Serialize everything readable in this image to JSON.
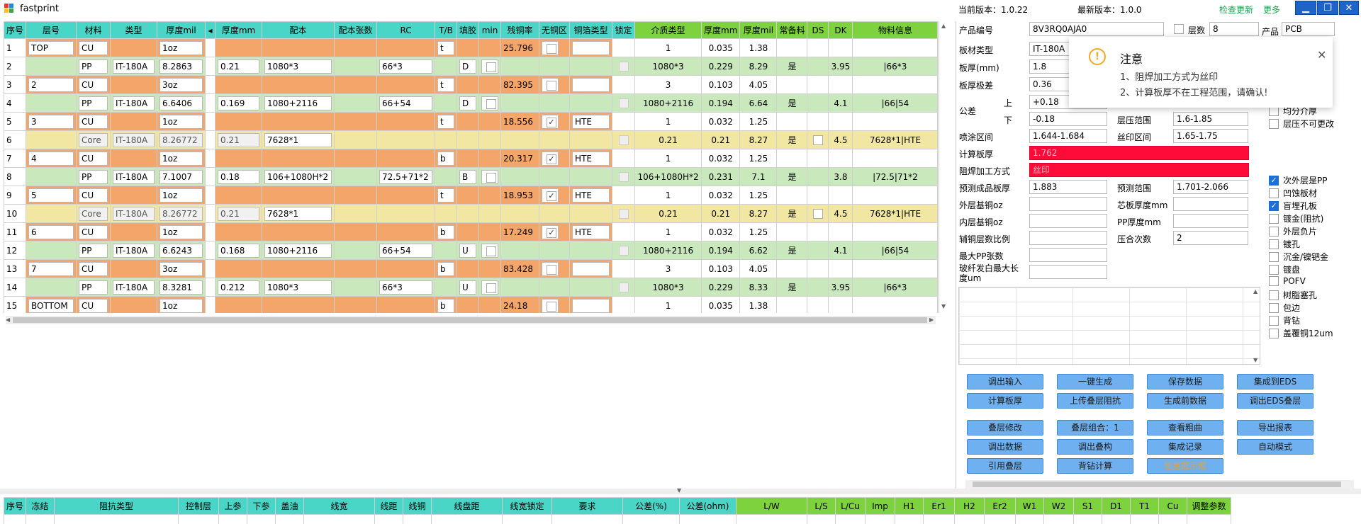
{
  "app": {
    "title": "fastprint",
    "current_version": "当前版本：1.0.22",
    "latest_version": "最新版本：1.0.0",
    "check_update": "检查更新",
    "more": "更多"
  },
  "grid": {
    "headers": [
      "序号",
      "层号",
      "材料",
      "类型",
      "厚度mil",
      "◂",
      "厚度mm",
      "配本",
      "配本张数",
      "RC",
      "T/B",
      "填胶",
      "min",
      "残铜率",
      "无铜区",
      "铜箔类型",
      "锁定",
      "介质类型",
      "厚度mm",
      "厚度mil",
      "常备料",
      "DS",
      "DK",
      "物料信息"
    ],
    "rows": [
      {
        "no": "1",
        "layer": "TOP",
        "mat": "CU",
        "type": "",
        "mil": "1oz",
        "mm": "",
        "pb": "",
        "pbn": "",
        "rc": "",
        "tb": "t",
        "fill": "",
        "min": "",
        "cu": "25.796",
        "nocu": false,
        "foil": "",
        "lock": false,
        "diel": "1",
        "tmm": "0.035",
        "tmil": "1.38",
        "std": "",
        "ds": "",
        "dk": "",
        "info": "",
        "kind": "cu"
      },
      {
        "no": "2",
        "layer": "",
        "mat": "PP",
        "type": "IT-180A",
        "mil": "8.2863",
        "mm": "0.21",
        "pb": "1080*3",
        "pbn": "",
        "rc": "66*3",
        "tb": "",
        "fill": "D",
        "min": "",
        "cu": "",
        "nocu": false,
        "foil": "",
        "lock": false,
        "diel": "1080*3",
        "tmm": "0.229",
        "tmil": "8.29",
        "std": "是",
        "ds": "",
        "dk": "3.95",
        "info": "|66*3",
        "kind": "pp"
      },
      {
        "no": "3",
        "layer": "2",
        "mat": "CU",
        "type": "",
        "mil": "3oz",
        "mm": "",
        "pb": "",
        "pbn": "",
        "rc": "",
        "tb": "t",
        "fill": "",
        "min": "",
        "cu": "82.395",
        "nocu": false,
        "foil": "",
        "lock": false,
        "diel": "3",
        "tmm": "0.103",
        "tmil": "4.05",
        "std": "",
        "ds": "",
        "dk": "",
        "info": "",
        "kind": "cu"
      },
      {
        "no": "4",
        "layer": "",
        "mat": "PP",
        "type": "IT-180A",
        "mil": "6.6406",
        "mm": "0.169",
        "pb": "1080+2116",
        "pbn": "",
        "rc": "66+54",
        "tb": "",
        "fill": "D",
        "min": "",
        "cu": "",
        "nocu": false,
        "foil": "",
        "lock": false,
        "diel": "1080+2116",
        "tmm": "0.194",
        "tmil": "6.64",
        "std": "是",
        "ds": "",
        "dk": "4.1",
        "info": "|66|54",
        "kind": "pp"
      },
      {
        "no": "5",
        "layer": "3",
        "mat": "CU",
        "type": "",
        "mil": "1oz",
        "mm": "",
        "pb": "",
        "pbn": "",
        "rc": "",
        "tb": "t",
        "fill": "",
        "min": "",
        "cu": "18.556",
        "nocu": true,
        "foil": "HTE",
        "lock": false,
        "diel": "1",
        "tmm": "0.032",
        "tmil": "1.25",
        "std": "",
        "ds": "",
        "dk": "",
        "info": "",
        "kind": "cu"
      },
      {
        "no": "6",
        "layer": "",
        "mat": "Core",
        "type": "IT-180A",
        "mil": "8.26772",
        "mm": "0.21",
        "pb": "7628*1",
        "pbn": "",
        "rc": "",
        "tb": "",
        "fill": "",
        "min": "",
        "cu": "",
        "nocu": false,
        "foil": "",
        "lock": false,
        "diel": "0.21",
        "tmm": "0.21",
        "tmil": "8.27",
        "std": "是",
        "ds": "□",
        "dk": "4.5",
        "info": "7628*1|HTE",
        "kind": "core"
      },
      {
        "no": "7",
        "layer": "4",
        "mat": "CU",
        "type": "",
        "mil": "1oz",
        "mm": "",
        "pb": "",
        "pbn": "",
        "rc": "",
        "tb": "b",
        "fill": "",
        "min": "",
        "cu": "20.317",
        "nocu": true,
        "foil": "HTE",
        "lock": false,
        "diel": "1",
        "tmm": "0.032",
        "tmil": "1.25",
        "std": "",
        "ds": "",
        "dk": "",
        "info": "",
        "kind": "cu"
      },
      {
        "no": "8",
        "layer": "",
        "mat": "PP",
        "type": "IT-180A",
        "mil": "7.1007",
        "mm": "0.18",
        "pb": "106+1080H*2",
        "pbn": "",
        "rc": "72.5+71*2",
        "tb": "",
        "fill": "B",
        "min": "",
        "cu": "",
        "nocu": false,
        "foil": "",
        "lock": false,
        "diel": "106+1080H*2",
        "tmm": "0.231",
        "tmil": "7.1",
        "std": "是",
        "ds": "",
        "dk": "3.8",
        "info": "|72.5|71*2",
        "kind": "pp"
      },
      {
        "no": "9",
        "layer": "5",
        "mat": "CU",
        "type": "",
        "mil": "1oz",
        "mm": "",
        "pb": "",
        "pbn": "",
        "rc": "",
        "tb": "t",
        "fill": "",
        "min": "",
        "cu": "18.953",
        "nocu": true,
        "foil": "HTE",
        "lock": false,
        "diel": "1",
        "tmm": "0.032",
        "tmil": "1.25",
        "std": "",
        "ds": "",
        "dk": "",
        "info": "",
        "kind": "cu"
      },
      {
        "no": "10",
        "layer": "",
        "mat": "Core",
        "type": "IT-180A",
        "mil": "8.26772",
        "mm": "0.21",
        "pb": "7628*1",
        "pbn": "",
        "rc": "",
        "tb": "",
        "fill": "",
        "min": "",
        "cu": "",
        "nocu": false,
        "foil": "",
        "lock": false,
        "diel": "0.21",
        "tmm": "0.21",
        "tmil": "8.27",
        "std": "是",
        "ds": "□",
        "dk": "4.5",
        "info": "7628*1|HTE",
        "kind": "core"
      },
      {
        "no": "11",
        "layer": "6",
        "mat": "CU",
        "type": "",
        "mil": "1oz",
        "mm": "",
        "pb": "",
        "pbn": "",
        "rc": "",
        "tb": "b",
        "fill": "",
        "min": "",
        "cu": "17.249",
        "nocu": true,
        "foil": "HTE",
        "lock": false,
        "diel": "1",
        "tmm": "0.032",
        "tmil": "1.25",
        "std": "",
        "ds": "",
        "dk": "",
        "info": "",
        "kind": "cu"
      },
      {
        "no": "12",
        "layer": "",
        "mat": "PP",
        "type": "IT-180A",
        "mil": "6.6243",
        "mm": "0.168",
        "pb": "1080+2116",
        "pbn": "",
        "rc": "66+54",
        "tb": "",
        "fill": "U",
        "min": "",
        "cu": "",
        "nocu": false,
        "foil": "",
        "lock": false,
        "diel": "1080+2116",
        "tmm": "0.194",
        "tmil": "6.62",
        "std": "是",
        "ds": "",
        "dk": "4.1",
        "info": "|66|54",
        "kind": "pp"
      },
      {
        "no": "13",
        "layer": "7",
        "mat": "CU",
        "type": "",
        "mil": "3oz",
        "mm": "",
        "pb": "",
        "pbn": "",
        "rc": "",
        "tb": "b",
        "fill": "",
        "min": "",
        "cu": "83.428",
        "nocu": false,
        "foil": "",
        "lock": false,
        "diel": "3",
        "tmm": "0.103",
        "tmil": "4.05",
        "std": "",
        "ds": "",
        "dk": "",
        "info": "",
        "kind": "cu"
      },
      {
        "no": "14",
        "layer": "",
        "mat": "PP",
        "type": "IT-180A",
        "mil": "8.3281",
        "mm": "0.212",
        "pb": "1080*3",
        "pbn": "",
        "rc": "66*3",
        "tb": "",
        "fill": "U",
        "min": "",
        "cu": "",
        "nocu": false,
        "foil": "",
        "lock": false,
        "diel": "1080*3",
        "tmm": "0.229",
        "tmil": "8.33",
        "std": "是",
        "ds": "",
        "dk": "3.95",
        "info": "|66*3",
        "kind": "pp"
      },
      {
        "no": "15",
        "layer": "BOTTOM",
        "mat": "CU",
        "type": "",
        "mil": "1oz",
        "mm": "",
        "pb": "",
        "pbn": "",
        "rc": "",
        "tb": "b",
        "fill": "",
        "min": "",
        "cu": "24.18",
        "nocu": false,
        "foil": "",
        "lock": false,
        "diel": "1",
        "tmm": "0.035",
        "tmil": "1.38",
        "std": "",
        "ds": "",
        "dk": "",
        "info": "",
        "kind": "cu"
      }
    ]
  },
  "panel": {
    "product_no_label": "产品编号",
    "product_no": "8V3RQ0AJA0",
    "layers_label": "层数",
    "layers": "8",
    "product_label": "产品",
    "product": "PCB",
    "board_type_label": "板材类型",
    "board_type": "IT-180A",
    "thickness_label": "板厚(mm)",
    "thickness": "1.8",
    "tol_label": "板厚极差",
    "tol": "0.36",
    "tolerance_label": "公差",
    "upper_label": "上",
    "upper": "+0.18",
    "lower_label": "下",
    "lower": "-0.18",
    "press_range_label": "层压范围",
    "press_range": "1.6-1.85",
    "spray_label": "喷涂区间",
    "spray": "1.644-1.684",
    "silk_label": "丝印区间",
    "silk": "1.65-1.75",
    "calc_label": "计算板厚",
    "calc": "1.762",
    "mask_label": "阻焊加工方式",
    "mask": "丝印",
    "pred_label": "预测成品板厚",
    "pred": "1.883",
    "pred_range_label": "预测范围",
    "pred_range": "1.701-2.066",
    "outer_label": "外层基铜oz",
    "core_mm_label": "芯板厚度mm",
    "inner_label": "内层基铜oz",
    "pp_mm_label": "PP厚度mm",
    "aux_label": "辅铜层数比例",
    "press_times_label": "压合次数",
    "press_times": "2",
    "max_pp_label": "最大PP张数",
    "glass_label": "玻纤发白最大长度um"
  },
  "checks": [
    {
      "label": "均分介厚",
      "on": false
    },
    {
      "label": "层压不可更改",
      "on": false
    },
    {
      "label": "次外层是PP",
      "on": true
    },
    {
      "label": "凹蚀板材",
      "on": false
    },
    {
      "label": "盲埋孔板",
      "on": true
    },
    {
      "label": "镀金(阻抗)",
      "on": false
    },
    {
      "label": "外层负片",
      "on": false
    },
    {
      "label": "镀孔",
      "on": false
    },
    {
      "label": "沉金/镍钯金",
      "on": false
    },
    {
      "label": "镀盘",
      "on": false
    },
    {
      "label": "POFV",
      "on": false
    },
    {
      "label": "树脂塞孔",
      "on": false
    },
    {
      "label": "包边",
      "on": false
    },
    {
      "label": "背钻",
      "on": false
    },
    {
      "label": "盖覆铜12um",
      "on": false
    }
  ],
  "buttons_a": [
    "调出输入",
    "一键生成",
    "保存数据",
    "集成到EDS",
    "计算板厚",
    "上传叠层阻抗",
    "生成前数据",
    "调出EDS叠层"
  ],
  "buttons_b": [
    "叠层修改",
    "叠层组合：1",
    "查看粗曲",
    "导出报表",
    "调出数据",
    "调出叠构",
    "集成记录",
    "自动模式",
    "引用叠层",
    "背钻计算",
    "信息提示框"
  ],
  "toast": {
    "title": "注意",
    "line1": "1、阻焊加工方式为丝印",
    "line2": "2、计算板厚不在工程范围，请确认!"
  },
  "bottom_headers": [
    "序号",
    "冻结",
    "阻抗类型",
    "控制层",
    "上参",
    "下参",
    "盖油",
    "线宽",
    "线距",
    "线铜",
    "线盘距",
    "线宽锁定",
    "要求",
    "公差(%)",
    "公差(ohm)",
    "L/W",
    "L/S",
    "L/Cu",
    "Imp",
    "H1",
    "Er1",
    "H2",
    "Er2",
    "W1",
    "W2",
    "S1",
    "D1",
    "T1",
    "Cu",
    "调整参数"
  ],
  "colors": {
    "teal": "#49d6c6",
    "green": "#7dd23d",
    "orange": "#f4a66a",
    "pp": "#c9e8bc",
    "core": "#f2e7a2",
    "red": "#ff0b3a",
    "button": "#6fb1f0"
  }
}
